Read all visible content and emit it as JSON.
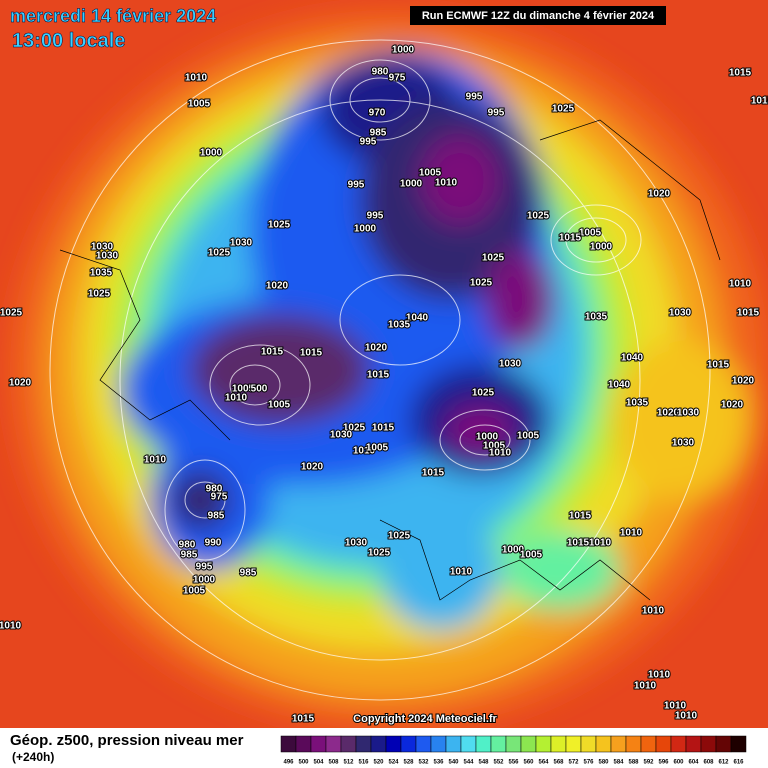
{
  "header": {
    "date": "mercredi 14 février 2024",
    "time": "13:00 locale",
    "run": "Run ECMWF 12Z du dimanche 4 février 2024"
  },
  "map": {
    "copyright": "Copyright 2024 Meteociel.fr",
    "isobar_labels": [
      "1000",
      "980",
      "975",
      "970",
      "985",
      "995",
      "995",
      "995",
      "1025",
      "1010",
      "1005",
      "1000",
      "995",
      "995",
      "1000",
      "1005",
      "1000",
      "1010",
      "1025",
      "1005",
      "1015",
      "1000",
      "1025",
      "1030",
      "1025",
      "1030",
      "1030",
      "1035",
      "1025",
      "1025",
      "1020",
      "1025",
      "1025",
      "1040",
      "1035",
      "1035",
      "1030",
      "1010",
      "1015",
      "1015",
      "1015",
      "1020",
      "1015",
      "1005",
      "500",
      "1010",
      "1005",
      "1030",
      "1040",
      "1040",
      "1025",
      "1035",
      "1020",
      "1030",
      "1020",
      "1015",
      "1020",
      "1020",
      "1030",
      "1025",
      "1030",
      "1015",
      "1010",
      "1005",
      "1000",
      "1005",
      "1005",
      "1010",
      "1010",
      "1020",
      "1015",
      "980",
      "975",
      "985",
      "980",
      "985",
      "990",
      "995",
      "1000",
      "1005",
      "985",
      "1025",
      "1030",
      "1025",
      "1015",
      "1010",
      "1015",
      "1010",
      "1000",
      "1005",
      "1010",
      "1010",
      "1010",
      "1010",
      "1010",
      "1010",
      "1010",
      "1015",
      "1015",
      "1020",
      "1015"
    ]
  },
  "legend": {
    "title": "Géop. z500, pression niveau mer",
    "lead": "(+240h)",
    "levels": [
      496,
      500,
      504,
      508,
      512,
      516,
      520,
      524,
      528,
      532,
      536,
      540,
      544,
      548,
      552,
      556,
      560,
      564,
      568,
      572,
      576,
      580,
      584,
      588,
      592,
      596,
      600,
      604,
      608,
      612,
      616
    ],
    "colors": [
      "#3c0a3c",
      "#5a0a5a",
      "#7a107a",
      "#8c2a8c",
      "#5a2a6a",
      "#302870",
      "#1a1a8a",
      "#0000b4",
      "#0a28dc",
      "#1e5af0",
      "#2882f0",
      "#3cb4f0",
      "#50dcf0",
      "#50f0c8",
      "#64f0a0",
      "#78e678",
      "#8ce650",
      "#b4f032",
      "#dcf028",
      "#f0f028",
      "#f0dc28",
      "#f5c31e",
      "#f5a01e",
      "#f58214",
      "#f0640f",
      "#e6460a",
      "#d22814",
      "#b41414",
      "#8c0a0a",
      "#640505",
      "#1e0000"
    ]
  }
}
